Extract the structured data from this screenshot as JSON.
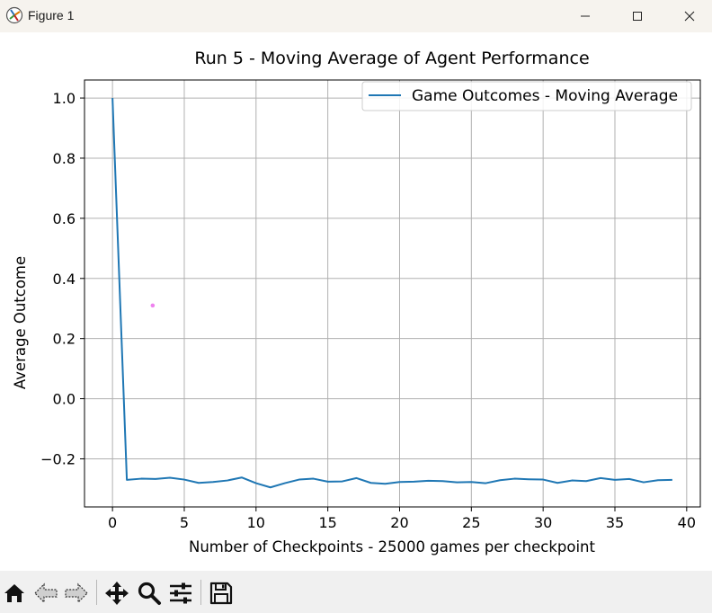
{
  "window": {
    "title": "Figure 1",
    "icons": {
      "app": "matplotlib-figure-icon",
      "minimize": "minimize-icon",
      "maximize": "maximize-icon",
      "close": "close-icon"
    }
  },
  "toolbar": {
    "buttons": [
      "home-icon",
      "back-arrow-icon",
      "forward-arrow-icon",
      "pan-icon",
      "zoom-icon",
      "configure-subplots-icon",
      "save-icon"
    ]
  },
  "colors": {
    "series": "#1f77b4",
    "grid": "#b0b0b0",
    "marker": "#ee82ee"
  },
  "chart_data": {
    "type": "line",
    "title": "Run 5 - Moving Average of Agent Performance",
    "xlabel": "Number of Checkpoints - 25000 games per checkpoint",
    "ylabel": "Average Outcome",
    "xlim": [
      -1.95,
      40.95
    ],
    "ylim": [
      -0.36,
      1.06
    ],
    "xticks": [
      0,
      5,
      10,
      15,
      20,
      25,
      30,
      35,
      40
    ],
    "yticks": [
      -0.2,
      0.0,
      0.2,
      0.4,
      0.6,
      0.8,
      1.0
    ],
    "xtick_labels": [
      "0",
      "5",
      "10",
      "15",
      "20",
      "25",
      "30",
      "35",
      "40"
    ],
    "ytick_labels": [
      "−0.2",
      "0.0",
      "0.2",
      "0.4",
      "0.6",
      "0.8",
      "1.0"
    ],
    "grid": true,
    "legend_position": "top-right",
    "series": [
      {
        "name": "Game Outcomes - Moving Average",
        "x": [
          0,
          1,
          2,
          3,
          4,
          5,
          6,
          7,
          8,
          9,
          10,
          11,
          12,
          13,
          14,
          15,
          16,
          17,
          18,
          19,
          20,
          21,
          22,
          23,
          24,
          25,
          26,
          27,
          28,
          29,
          30,
          31,
          32,
          33,
          34,
          35,
          36,
          37,
          38,
          39
        ],
        "values": [
          1.0,
          -0.27,
          -0.266,
          -0.267,
          -0.263,
          -0.269,
          -0.28,
          -0.277,
          -0.272,
          -0.262,
          -0.281,
          -0.295,
          -0.281,
          -0.269,
          -0.266,
          -0.276,
          -0.275,
          -0.264,
          -0.28,
          -0.283,
          -0.277,
          -0.276,
          -0.273,
          -0.274,
          -0.278,
          -0.277,
          -0.281,
          -0.271,
          -0.266,
          -0.268,
          -0.269,
          -0.28,
          -0.272,
          -0.274,
          -0.264,
          -0.27,
          -0.267,
          -0.278,
          -0.271,
          -0.27
        ]
      }
    ],
    "extra_points": [
      {
        "x": 2.8,
        "y": 0.31
      }
    ]
  }
}
